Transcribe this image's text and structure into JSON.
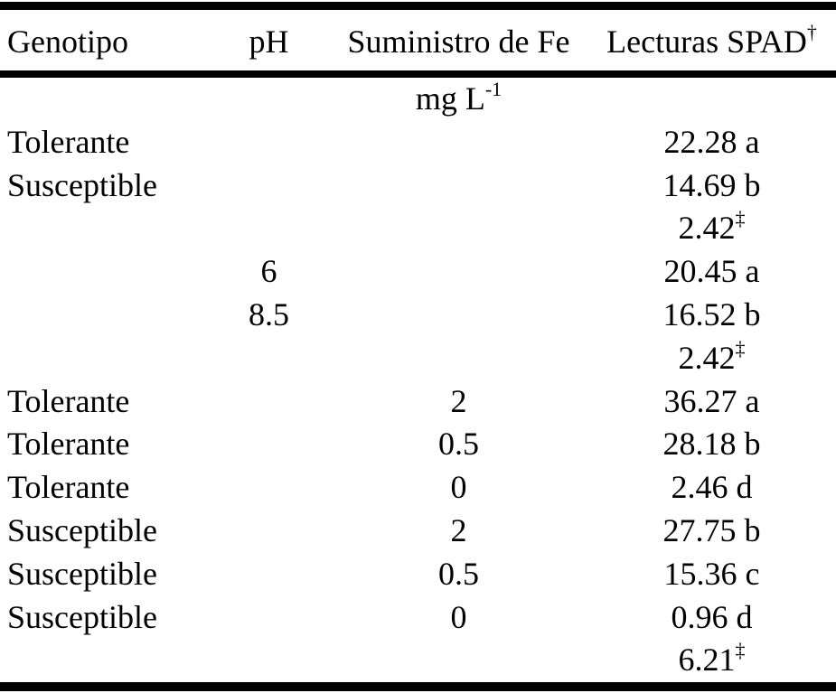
{
  "page": {
    "background_color": "#ffffff",
    "text_color": "#000000",
    "rule_color": "#000000"
  },
  "table": {
    "columns": [
      {
        "label": "Genotipo",
        "sup": ""
      },
      {
        "label": "pH",
        "sup": ""
      },
      {
        "label": "Suministro de Fe",
        "sup": ""
      },
      {
        "label": "Lecturas SPAD",
        "sup": "†"
      }
    ],
    "unit_row": {
      "label": "mg L",
      "sup": "-1"
    },
    "rows": [
      {
        "genotipo": "Tolerante",
        "ph": "",
        "fe": "",
        "spad": "22.28 a",
        "spad_sup": ""
      },
      {
        "genotipo": "Susceptible",
        "ph": "",
        "fe": "",
        "spad": "14.69 b",
        "spad_sup": ""
      },
      {
        "genotipo": "",
        "ph": "",
        "fe": "",
        "spad": "2.42",
        "spad_sup": "‡"
      },
      {
        "genotipo": "",
        "ph": "6",
        "fe": "",
        "spad": "20.45 a",
        "spad_sup": ""
      },
      {
        "genotipo": "",
        "ph": "8.5",
        "fe": "",
        "spad": "16.52 b",
        "spad_sup": ""
      },
      {
        "genotipo": "",
        "ph": "",
        "fe": "",
        "spad": "2.42",
        "spad_sup": "‡"
      },
      {
        "genotipo": "Tolerante",
        "ph": "",
        "fe": "2",
        "spad": "36.27 a",
        "spad_sup": ""
      },
      {
        "genotipo": "Tolerante",
        "ph": "",
        "fe": "0.5",
        "spad": "28.18 b",
        "spad_sup": ""
      },
      {
        "genotipo": "Tolerante",
        "ph": "",
        "fe": "0",
        "spad": "2.46 d",
        "spad_sup": ""
      },
      {
        "genotipo": "Susceptible",
        "ph": "",
        "fe": "2",
        "spad": "27.75 b",
        "spad_sup": ""
      },
      {
        "genotipo": "Susceptible",
        "ph": "",
        "fe": "0.5",
        "spad": "15.36 c",
        "spad_sup": ""
      },
      {
        "genotipo": "Susceptible",
        "ph": "",
        "fe": "0",
        "spad": "0.96 d",
        "spad_sup": ""
      },
      {
        "genotipo": "",
        "ph": "",
        "fe": "",
        "spad": "6.21",
        "spad_sup": "‡"
      }
    ]
  }
}
